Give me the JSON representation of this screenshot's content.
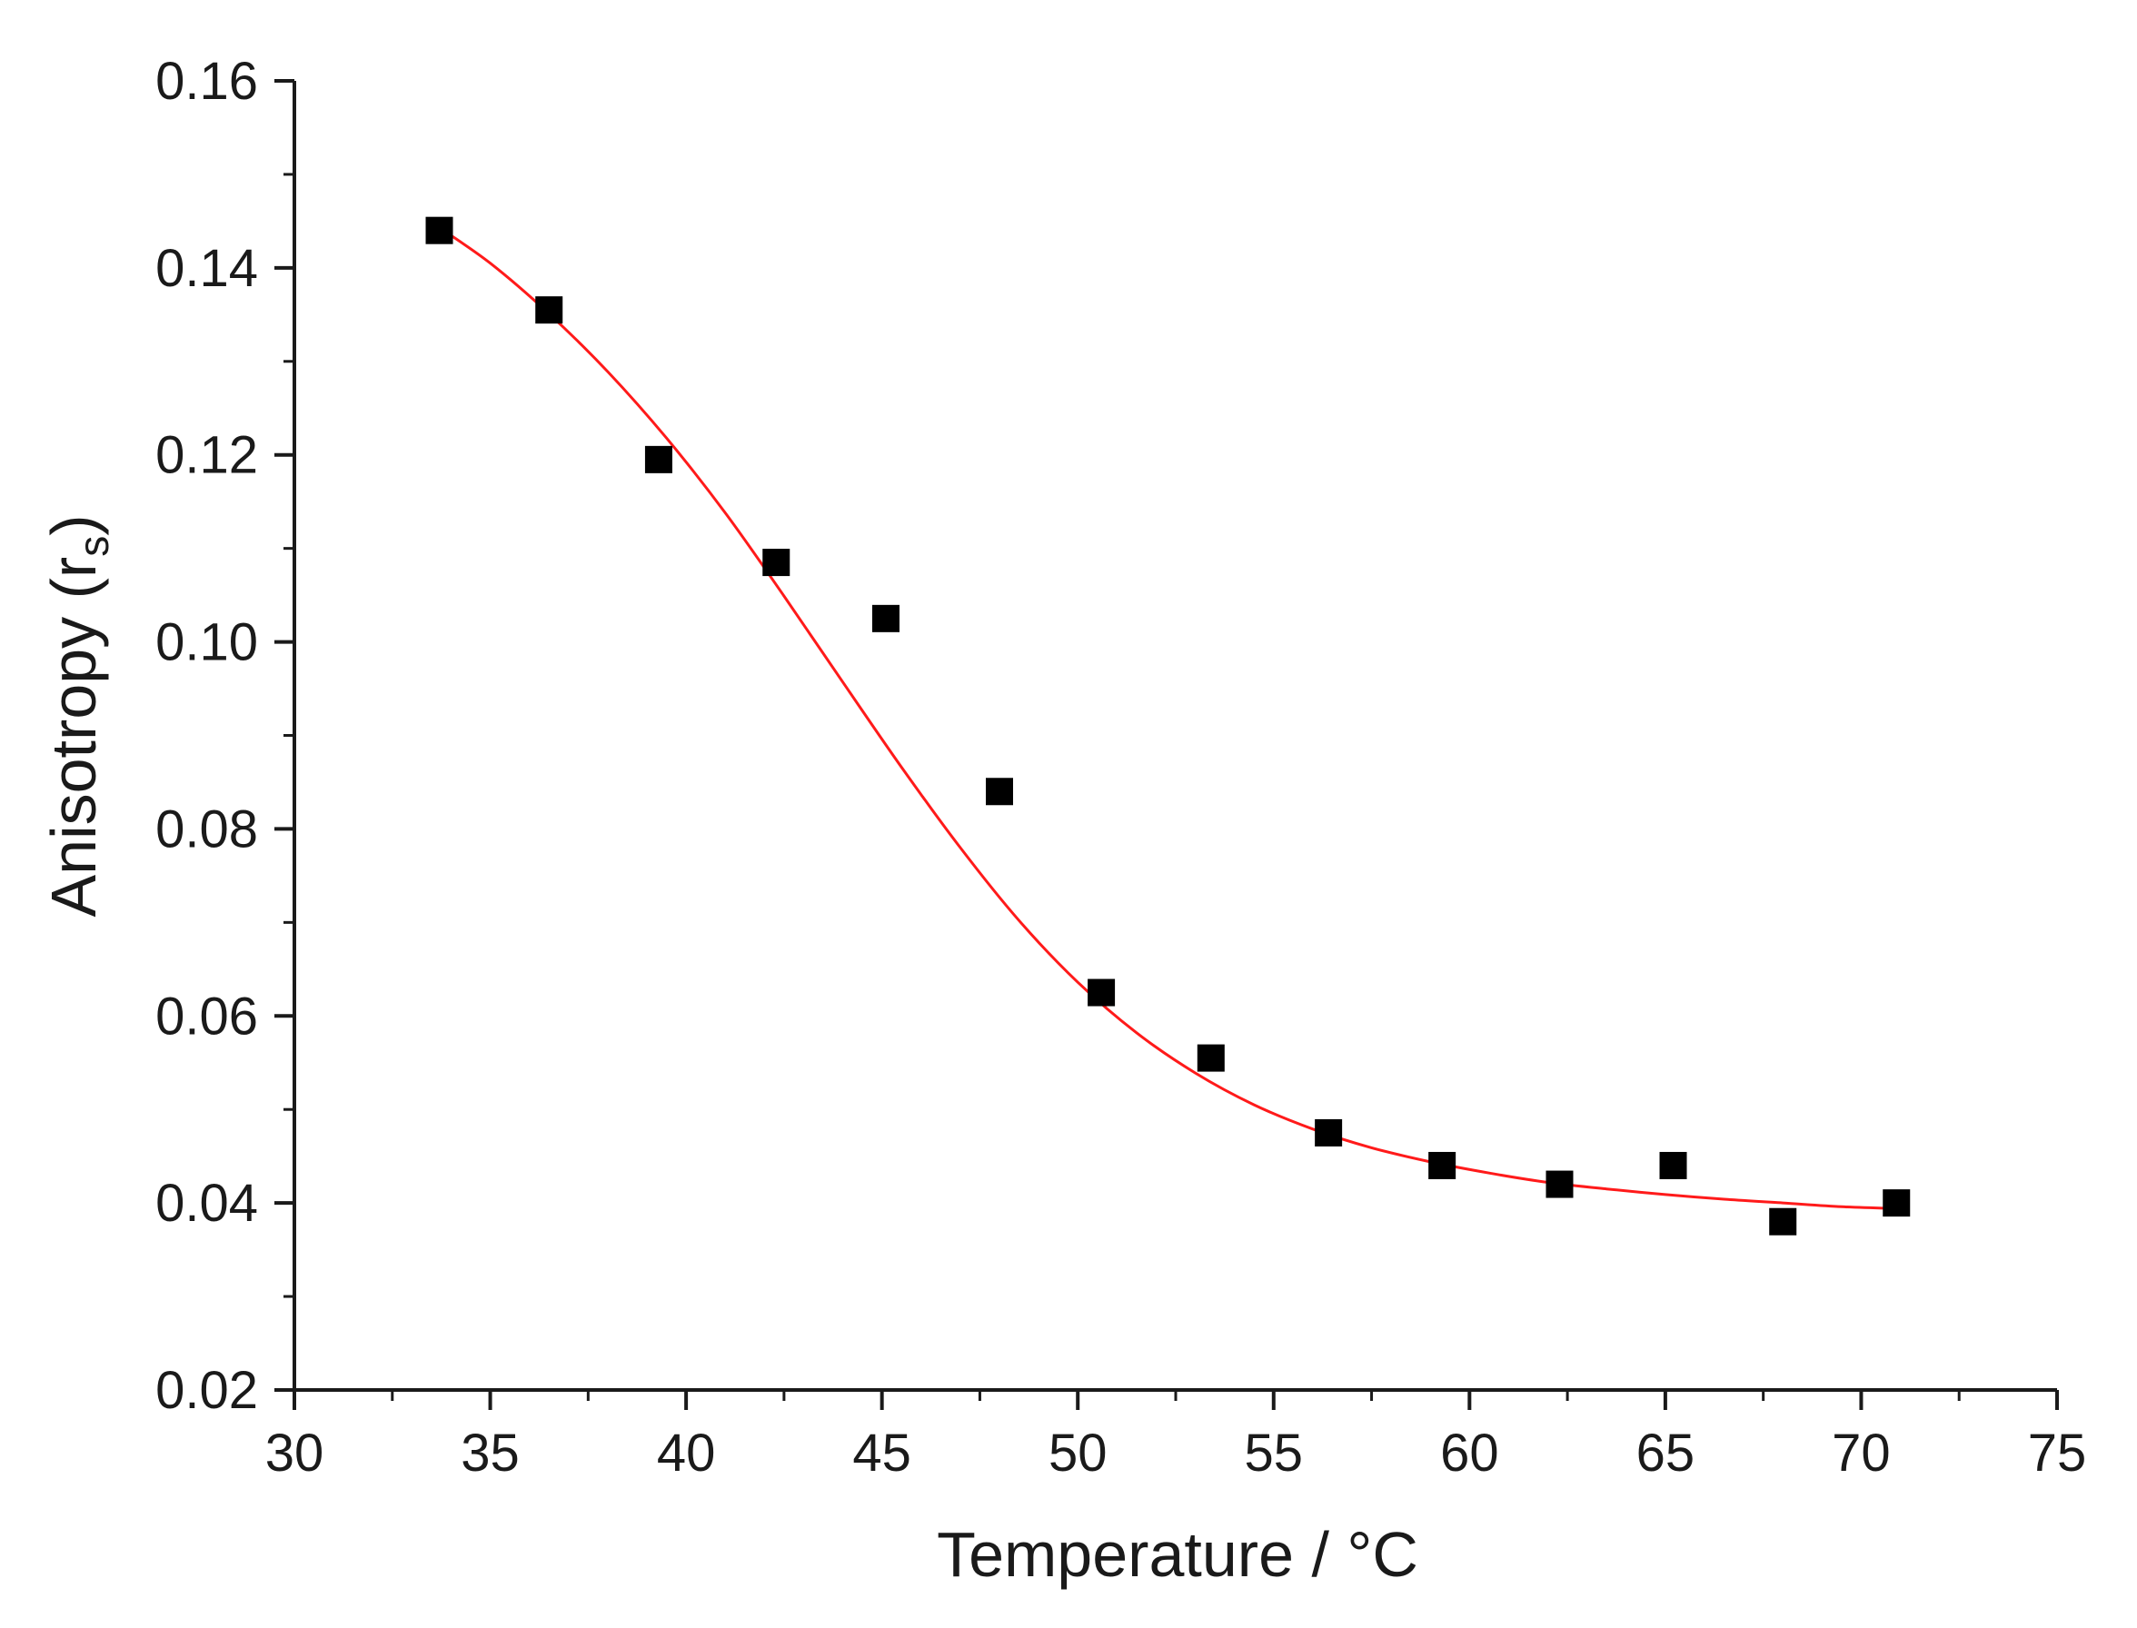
{
  "chart_data": {
    "type": "scatter",
    "title": "",
    "xlabel": "Temperature / °C",
    "ylabel_main": "Anisotropy (r",
    "ylabel_sub": "s",
    "ylabel_close": ")",
    "xlim": [
      30,
      75
    ],
    "ylim": [
      0.02,
      0.16
    ],
    "x_ticks": [
      30,
      35,
      40,
      45,
      50,
      55,
      60,
      65,
      70,
      75
    ],
    "x_tick_labels": [
      "30",
      "35",
      "40",
      "45",
      "50",
      "55",
      "60",
      "65",
      "70",
      "75"
    ],
    "y_ticks": [
      0.02,
      0.04,
      0.06,
      0.08,
      0.1,
      0.12,
      0.14,
      0.16
    ],
    "y_tick_labels": [
      "0.02",
      "0.04",
      "0.06",
      "0.08",
      "0.10",
      "0.12",
      "0.14",
      "0.16"
    ],
    "grid": false,
    "legend": "none",
    "series": [
      {
        "type": "scatter",
        "marker": "square",
        "color": "#000000",
        "x": [
          33.7,
          36.5,
          39.3,
          42.3,
          45.1,
          48.0,
          50.6,
          53.4,
          56.4,
          59.3,
          62.3,
          65.2,
          68.0,
          70.9
        ],
        "y": [
          0.144,
          0.1355,
          0.1195,
          0.1085,
          0.1025,
          0.084,
          0.0625,
          0.0555,
          0.0475,
          0.044,
          0.042,
          0.044,
          0.038,
          0.04
        ]
      },
      {
        "type": "line",
        "color": "#ff1a1a",
        "x": [
          33.7,
          35,
          36.5,
          38,
          39.5,
          41,
          42.5,
          44,
          45.5,
          47,
          48.5,
          50,
          51.5,
          53,
          54.5,
          56,
          57.5,
          59,
          60.5,
          62,
          63.5,
          65,
          66.5,
          68,
          69.5,
          70.9
        ],
        "y": [
          0.1443,
          0.1405,
          0.1351,
          0.1289,
          0.1218,
          0.1138,
          0.1049,
          0.0957,
          0.0866,
          0.078,
          0.0702,
          0.0636,
          0.0582,
          0.0539,
          0.0505,
          0.0479,
          0.0459,
          0.0444,
          0.0432,
          0.0422,
          0.0415,
          0.0409,
          0.0404,
          0.04,
          0.0396,
          0.0394
        ]
      }
    ]
  }
}
